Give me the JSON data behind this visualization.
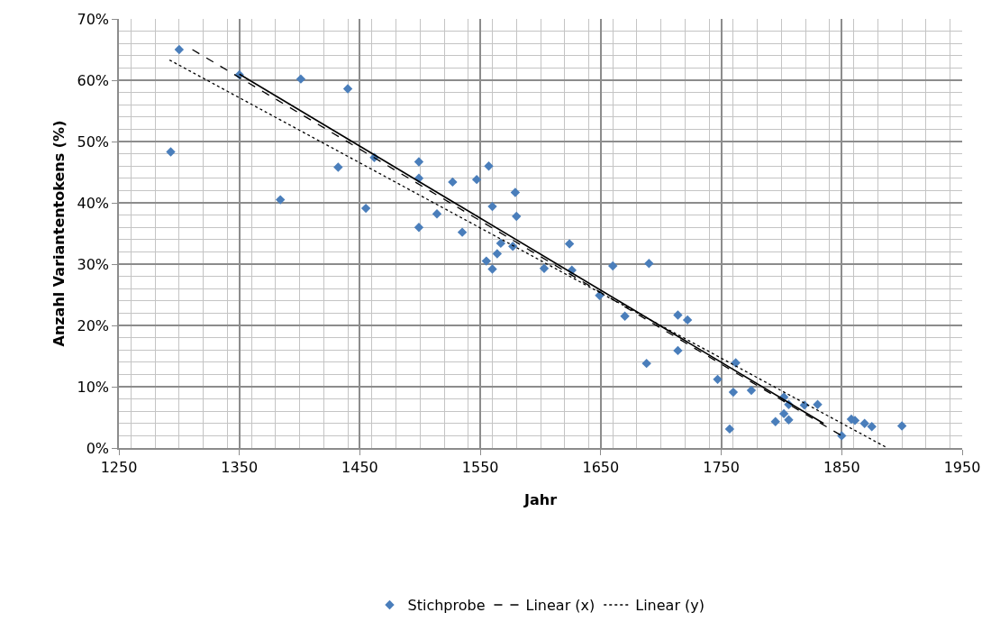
{
  "chart_data": {
    "type": "scatter",
    "xlabel": "Jahr",
    "ylabel": "Anzahl Variantentokens (%)",
    "xlim": [
      1250,
      1950
    ],
    "xticks": [
      1250,
      1350,
      1450,
      1550,
      1650,
      1750,
      1850,
      1950
    ],
    "ylim": [
      0,
      70
    ],
    "yticks": [
      {
        "value": 0,
        "label": "0%"
      },
      {
        "value": 10,
        "label": "10%"
      },
      {
        "value": 20,
        "label": "20%"
      },
      {
        "value": 30,
        "label": "30%"
      },
      {
        "value": 40,
        "label": "40%"
      },
      {
        "value": 50,
        "label": "50%"
      },
      {
        "value": 60,
        "label": "60%"
      },
      {
        "value": 70,
        "label": "70%"
      }
    ],
    "grid": true,
    "legend": "bottom",
    "series": [
      {
        "name": "Stichprobe",
        "marker": "diamond",
        "color": "#4a7ebb",
        "x": [
          1300,
          1293,
          1350,
          1401,
          1440,
          1432,
          1462,
          1384,
          1455,
          1499,
          1499,
          1499,
          1527,
          1535,
          1547,
          1557,
          1560,
          1579,
          1580,
          1567,
          1577,
          1564,
          1555,
          1560,
          1603,
          1514,
          1624,
          1626,
          1660,
          1690,
          1649,
          1670,
          1714,
          1722,
          1688,
          1714,
          1747,
          1762,
          1760,
          1775,
          1757,
          1795,
          1802,
          1806,
          1802,
          1806,
          1819,
          1830,
          1850,
          1858,
          1861,
          1869,
          1875,
          1900
        ],
        "values": [
          65,
          48.3,
          60.9,
          60.2,
          58.6,
          45.8,
          47.4,
          40.5,
          39.1,
          46.7,
          44,
          36,
          43.4,
          35.2,
          43.8,
          46,
          39.4,
          41.7,
          37.8,
          33.4,
          32.9,
          31.7,
          30.5,
          29.2,
          29.3,
          38.2,
          33.3,
          29,
          29.7,
          30.1,
          24.9,
          21.5,
          21.7,
          20.9,
          13.8,
          15.9,
          11.2,
          13.9,
          9.1,
          9.4,
          3.1,
          4.3,
          8.3,
          7.1,
          5.6,
          4.6,
          7,
          7.1,
          2,
          4.7,
          4.5,
          4,
          3.5,
          3.6
        ]
      },
      {
        "name": "Linear (x)",
        "type": "line",
        "line_style": "dashed",
        "color": "#000000",
        "x": [
          1311,
          1850
        ],
        "values": [
          65,
          2
        ]
      },
      {
        "name": "Linear (y)",
        "type": "line",
        "line_style": "dotted",
        "color": "#000000",
        "x": [
          1292,
          1888
        ],
        "values": [
          63.3,
          0
        ]
      },
      {
        "type": "line",
        "line_style": "solid",
        "color": "#000000",
        "x": [
          1350,
          1835
        ],
        "values": [
          61,
          4
        ]
      }
    ]
  }
}
